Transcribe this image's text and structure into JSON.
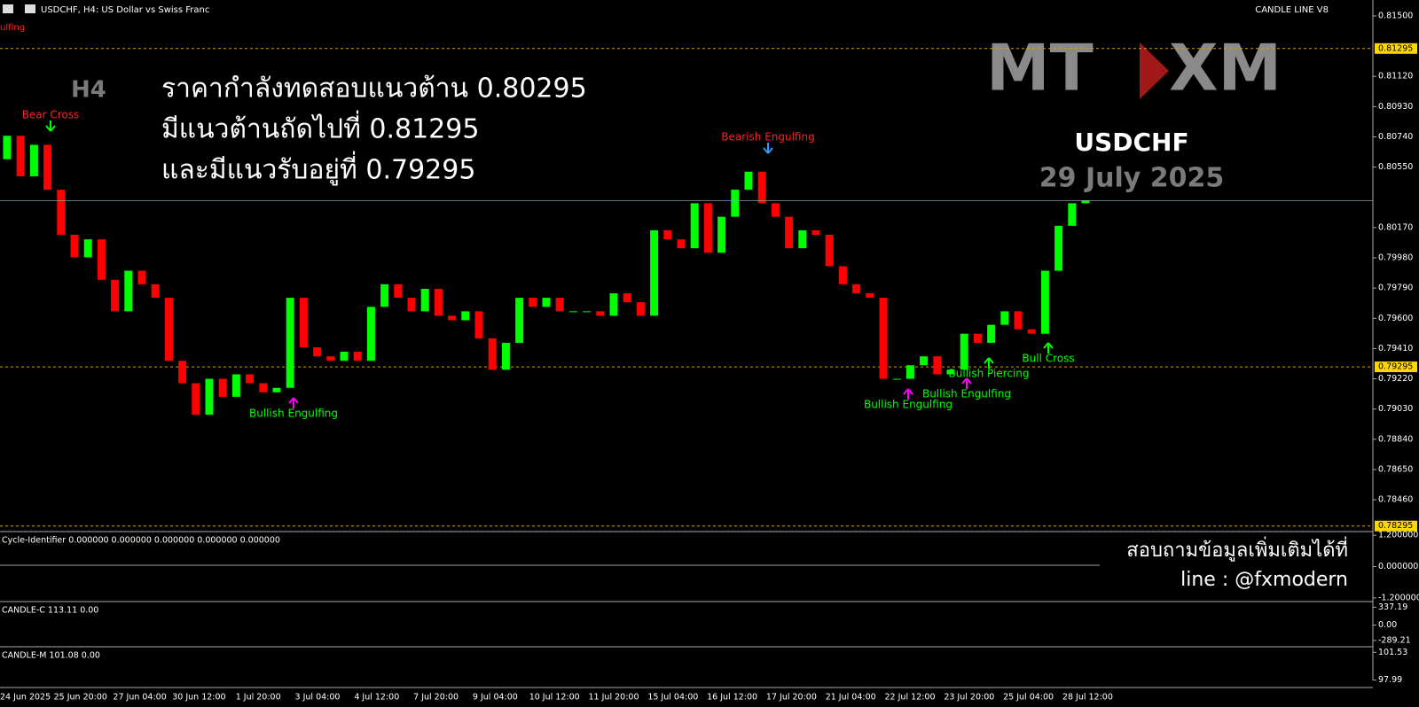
{
  "chart_data": {
    "type": "candlestick",
    "title": "USDCHF, H4:  US Dollar vs Swiss Franc",
    "indicator_name": "CANDLE LINE V8",
    "corner_text": "ulfing",
    "timeframe": "H4",
    "headline": [
      "ราคากำลังทดสอบแนวต้าน 0.80295",
      "มีแนวต้านถัดไปที่ 0.81295",
      "และมีแนวรับอยู่ที่ 0.79295"
    ],
    "logos": [
      "MT",
      "XM"
    ],
    "symbol": "USDCHF",
    "date": "29 July 2025",
    "contact": [
      "สอบถามข้อมูลเพิ่มเติมได้ที่",
      "line : @fxmodern"
    ],
    "up_color": "#00ff00",
    "down_color": "#ff0000",
    "ylim": [
      0.7826,
      0.816
    ],
    "yticks": [
      {
        "value": 0.815,
        "label": "0.81500"
      },
      {
        "value": 0.8112,
        "label": "0.81120"
      },
      {
        "value": 0.8093,
        "label": "0.80930"
      },
      {
        "value": 0.8074,
        "label": "0.80740"
      },
      {
        "value": 0.8055,
        "label": "0.80550"
      },
      {
        "value": 0.8017,
        "label": "0.80170"
      },
      {
        "value": 0.7998,
        "label": "0.79980"
      },
      {
        "value": 0.7979,
        "label": "0.79790"
      },
      {
        "value": 0.796,
        "label": "0.79600"
      },
      {
        "value": 0.7941,
        "label": "0.79410"
      },
      {
        "value": 0.7922,
        "label": "0.79220"
      },
      {
        "value": 0.7903,
        "label": "0.79030"
      },
      {
        "value": 0.7884,
        "label": "0.78840"
      },
      {
        "value": 0.7865,
        "label": "0.78650"
      },
      {
        "value": 0.7846,
        "label": "0.78460"
      }
    ],
    "levels": [
      0.81295,
      0.79295,
      0.78295
    ],
    "level_color": "#d4a017",
    "x_labels": [
      "24 Jun 2025",
      "25 Jun 20:00",
      "27 Jun 04:00",
      "30 Jun 12:00",
      "1 Jul 20:00",
      "3 Jul 04:00",
      "4 Jul 12:00",
      "7 Jul 20:00",
      "9 Jul 04:00",
      "10 Jul 12:00",
      "11 Jul 20:00",
      "15 Jul 04:00",
      "16 Jul 12:00",
      "17 Jul 20:00",
      "21 Jul 04:00",
      "22 Jul 12:00",
      "23 Jul 20:00",
      "25 Jul 04:00",
      "28 Jul 12:00"
    ],
    "open": [
      0.806,
      0.80747,
      0.80492,
      0.8069,
      0.80408,
      0.80125,
      0.79983,
      0.80096,
      0.79842,
      0.79644,
      0.79899,
      0.79814,
      0.79729,
      0.79333,
      0.79192,
      0.78994,
      0.7922,
      0.79107,
      0.79248,
      0.79192,
      0.79135,
      0.79163,
      0.79729,
      0.79418,
      0.79361,
      0.79333,
      0.7939,
      0.79333,
      0.79672,
      0.79814,
      0.79729,
      0.79644,
      0.79785,
      0.79616,
      0.79588,
      0.79644,
      0.79474,
      0.79277,
      0.79446,
      0.79729,
      0.79672,
      0.79729,
      0.79644,
      0.79644,
      0.79644,
      0.79616,
      0.79757,
      0.79701,
      0.79616,
      0.80153,
      0.80096,
      0.8004,
      0.80323,
      0.80012,
      0.80238,
      0.80408,
      0.80521,
      0.80323,
      0.80238,
      0.8004,
      0.80153,
      0.80125,
      0.79927,
      0.79814,
      0.79757,
      0.79729,
      0.7922,
      0.7922,
      0.79305,
      0.79361,
      0.79248,
      0.79277,
      0.79503,
      0.79446,
      0.79559,
      0.79644,
      0.79531,
      0.79503,
      0.79899,
      0.80181,
      0.80323
    ],
    "close": [
      0.80747,
      0.80492,
      0.8069,
      0.80408,
      0.80125,
      0.79983,
      0.80096,
      0.79842,
      0.79644,
      0.79899,
      0.79814,
      0.79729,
      0.79333,
      0.79192,
      0.78994,
      0.7922,
      0.79107,
      0.79248,
      0.79192,
      0.79135,
      0.79163,
      0.79729,
      0.79418,
      0.79361,
      0.79333,
      0.7939,
      0.79333,
      0.79672,
      0.79814,
      0.79729,
      0.79644,
      0.79785,
      0.79616,
      0.79588,
      0.79644,
      0.79474,
      0.79277,
      0.79446,
      0.79729,
      0.79672,
      0.79729,
      0.79644,
      0.79644,
      0.79644,
      0.79616,
      0.79757,
      0.79701,
      0.79616,
      0.80153,
      0.80096,
      0.8004,
      0.80323,
      0.80012,
      0.80238,
      0.80408,
      0.80521,
      0.80323,
      0.80238,
      0.8004,
      0.80153,
      0.80125,
      0.79927,
      0.79814,
      0.79757,
      0.79729,
      0.7922,
      0.7922,
      0.79305,
      0.79361,
      0.79248,
      0.79277,
      0.79503,
      0.79446,
      0.79559,
      0.79644,
      0.79531,
      0.79503,
      0.79899,
      0.80181,
      0.80323,
      0.8034
    ],
    "annotations": [
      {
        "text": "Bear Cross",
        "color": "#ff2020"
      },
      {
        "text": "Bearish Engulfing",
        "color": "#ff2020"
      },
      {
        "text": "Bullish Engulfing",
        "color": "#00ff00"
      },
      {
        "text": "Bullish Engulfing",
        "color": "#00ff00"
      },
      {
        "text": "Bullish Engulfing",
        "color": "#00ff00"
      },
      {
        "text": "Bullish Piercing",
        "color": "#00ff00"
      },
      {
        "text": "Bull Cross",
        "color": "#00ff00"
      }
    ],
    "panels": [
      {
        "name": "Cycle-Identifier 0.000000 0.000000 0.000000 0.000000 0.000000",
        "ylim": [
          -1.34,
          1.34
        ],
        "yticks": [
          {
            "value": 1.2,
            "label": "1.200000"
          },
          {
            "value": 0,
            "label": "0.000000"
          },
          {
            "value": -1.2,
            "label": "-1.200000"
          }
        ]
      },
      {
        "name": "CANDLE-C 113.11 0.00",
        "ylim": [
          -408,
          443
        ],
        "yticks": [
          {
            "value": 337.19,
            "label": "337.19"
          },
          {
            "value": 0,
            "label": "0.00"
          },
          {
            "value": -289.21,
            "label": "-289.21"
          }
        ]
      },
      {
        "name": "CANDLE-M 101.08 0.00",
        "ylim": [
          97.05,
          102.24
        ],
        "yticks": [
          101.53,
          97.99
        ]
      }
    ]
  }
}
